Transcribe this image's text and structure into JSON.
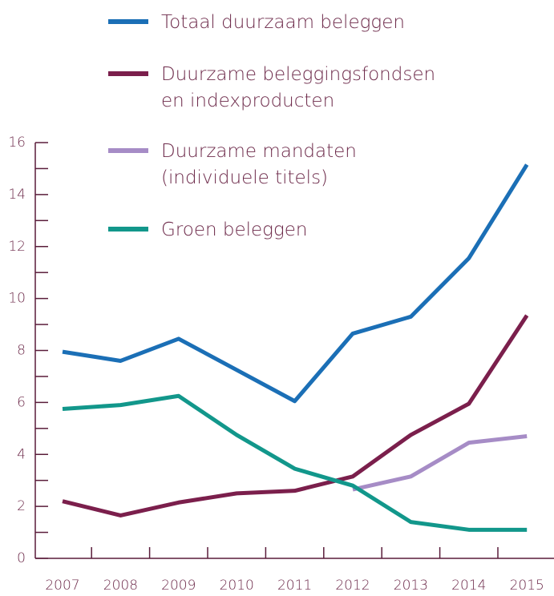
{
  "chart_data": {
    "type": "line",
    "categories": [
      "2007",
      "2008",
      "2009",
      "2010",
      "2011",
      "2012",
      "2013",
      "2014",
      "2015"
    ],
    "series": [
      {
        "name": "Totaal duurzaam beleggen",
        "color": "#1b6fb6",
        "values": [
          7.95,
          7.6,
          8.45,
          7.25,
          6.05,
          8.65,
          9.3,
          11.55,
          15.15
        ]
      },
      {
        "name": "Duurzame beleggingsfondsen en indexproducten",
        "color": "#7b1f4c",
        "values": [
          2.2,
          1.65,
          2.15,
          2.5,
          2.6,
          3.15,
          4.75,
          5.95,
          9.35
        ]
      },
      {
        "name": "Duurzame mandaten (individuele titels)",
        "color": "#a68cc6",
        "values": [
          null,
          null,
          null,
          null,
          null,
          2.65,
          3.15,
          4.45,
          4.7
        ]
      },
      {
        "name": "Groen beleggen",
        "color": "#12978b",
        "values": [
          5.75,
          5.9,
          6.25,
          4.75,
          3.45,
          2.8,
          1.4,
          1.1,
          1.1
        ]
      }
    ],
    "ylim": [
      0,
      16
    ],
    "yticks": [
      0,
      2,
      4,
      6,
      8,
      10,
      12,
      14,
      16
    ],
    "minor_yticks": [
      1,
      3,
      5,
      7,
      9,
      11,
      13,
      15
    ]
  }
}
